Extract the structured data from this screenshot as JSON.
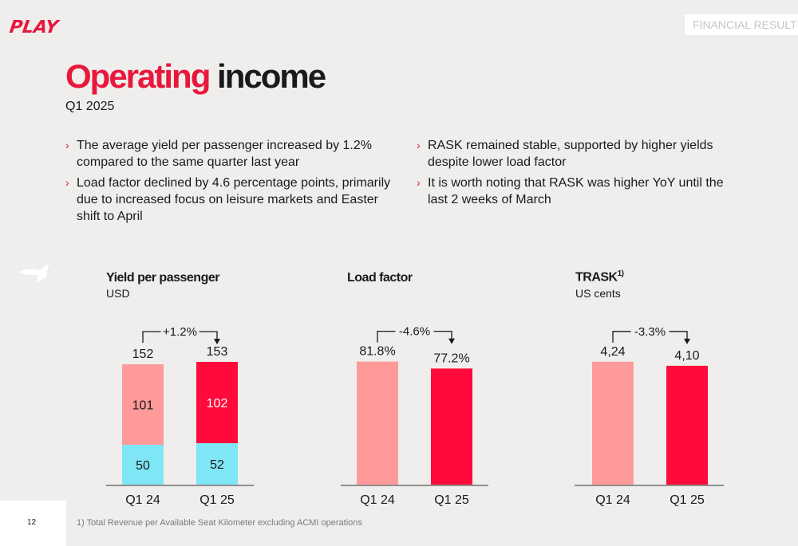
{
  "brand": {
    "logo_text": "PLAY",
    "section_tag": "FINANCIAL RESULTS",
    "accent": "#e8173c",
    "light_red": "#ff9a9a",
    "cyan": "#7ee6f4"
  },
  "header": {
    "title_red": "Operating",
    "title_dark": "income",
    "subtitle": "Q1 2025"
  },
  "bullets_left": [
    "The average yield per passenger increased by 1.2% compared to the same quarter last year",
    "Load factor declined by 4.6 percentage points, primarily due to increased focus on leisure markets and Easter shift to April"
  ],
  "bullets_right": [
    "RASK remained stable, supported by higher yields despite lower load factor",
    "It is worth noting that RASK was higher YoY until the last 2 weeks of March"
  ],
  "chart_data": [
    {
      "type": "bar",
      "stacked": true,
      "title": "Yield per passenger",
      "unit": "USD",
      "categories": [
        "Q1 24",
        "Q1 25"
      ],
      "series": [
        {
          "values": [
            50,
            52
          ],
          "colors": [
            "#7ee6f4",
            "#7ee6f4"
          ]
        },
        {
          "values": [
            101,
            102
          ],
          "colors": [
            "#ff9a9a",
            "#ff0a3a"
          ]
        }
      ],
      "totals": [
        "152",
        "153"
      ],
      "segment_labels": [
        [
          "50",
          "52"
        ],
        [
          "101",
          "102"
        ]
      ],
      "change": "+1.2%",
      "ylim": [
        0,
        200
      ]
    },
    {
      "type": "bar",
      "title": "Load factor",
      "unit": "",
      "categories": [
        "Q1 24",
        "Q1 25"
      ],
      "values": [
        81.8,
        77.2
      ],
      "colors": [
        "#ff9a9a",
        "#ff0a3a"
      ],
      "labels": [
        "81.8%",
        "77.2%"
      ],
      "change": "-4.6%",
      "ylim": [
        0,
        106
      ]
    },
    {
      "type": "bar",
      "title": "TRASK",
      "title_sup": "1)",
      "unit": "US cents",
      "categories": [
        "Q1 24",
        "Q1 25"
      ],
      "values": [
        4.24,
        4.1
      ],
      "colors": [
        "#ff9a9a",
        "#ff0a3a"
      ],
      "labels": [
        "4,24",
        "4,10"
      ],
      "change": "-3.3%",
      "ylim": [
        0,
        5.5
      ]
    }
  ],
  "footer": {
    "page_number": "12",
    "footnote": "1)    Total Revenue per Available Seat Kilometer excluding ACMI operations"
  }
}
